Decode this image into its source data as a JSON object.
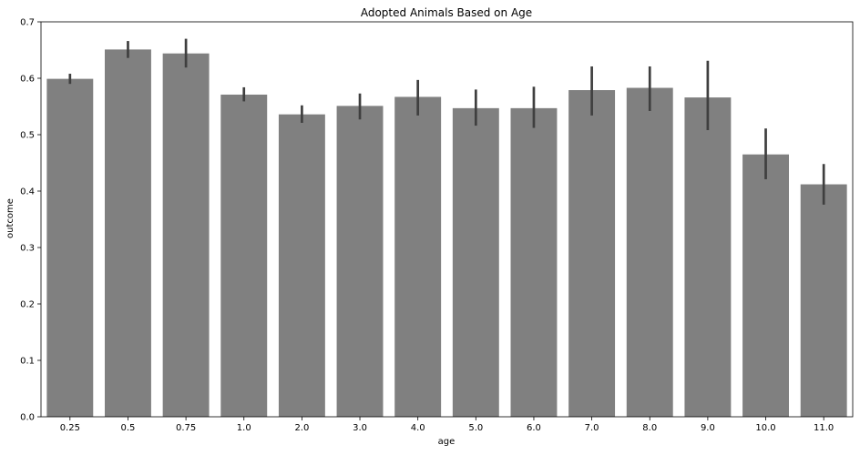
{
  "chart_data": {
    "type": "bar",
    "title": "Adopted Animals Based on Age",
    "xlabel": "age",
    "ylabel": "outcome",
    "categories": [
      "0.25",
      "0.5",
      "0.75",
      "1.0",
      "2.0",
      "3.0",
      "4.0",
      "5.0",
      "6.0",
      "7.0",
      "8.0",
      "9.0",
      "10.0",
      "11.0"
    ],
    "values": [
      0.599,
      0.651,
      0.644,
      0.571,
      0.536,
      0.551,
      0.567,
      0.547,
      0.547,
      0.579,
      0.583,
      0.566,
      0.465,
      0.412
    ],
    "error_low": [
      0.59,
      0.636,
      0.619,
      0.559,
      0.521,
      0.527,
      0.534,
      0.516,
      0.512,
      0.534,
      0.542,
      0.508,
      0.421,
      0.376
    ],
    "error_high": [
      0.608,
      0.666,
      0.67,
      0.584,
      0.552,
      0.573,
      0.597,
      0.58,
      0.585,
      0.621,
      0.621,
      0.631,
      0.511,
      0.448
    ],
    "ylim": [
      0,
      0.7
    ],
    "yticks": [
      "0.0",
      "0.1",
      "0.2",
      "0.3",
      "0.4",
      "0.5",
      "0.6",
      "0.7"
    ],
    "bar_color": "#808080",
    "error_color": "#3f3f3f",
    "grid": false
  }
}
